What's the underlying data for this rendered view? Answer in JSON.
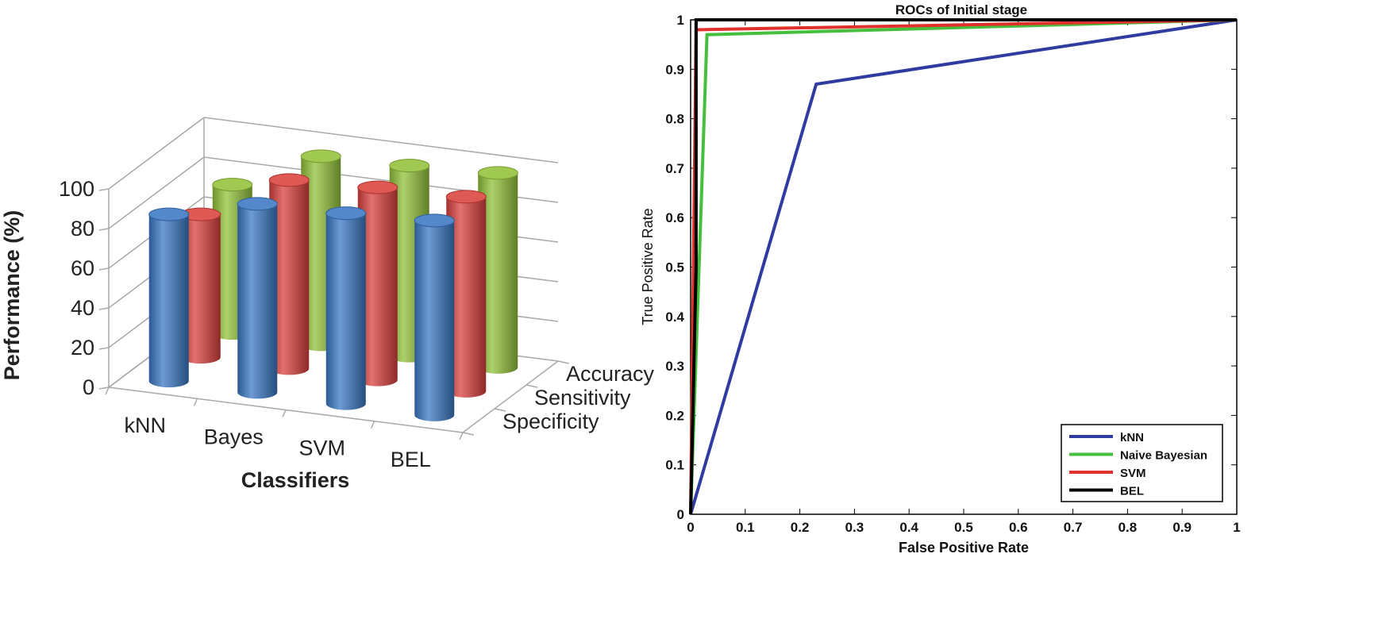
{
  "chart_data": [
    {
      "type": "bar",
      "subtype": "3d-cylinder",
      "title": "",
      "xlabel": "Classifiers",
      "ylabel": "Performance  (%)",
      "ylim": [
        0,
        100
      ],
      "yticks": [
        "0",
        "20",
        "40",
        "60",
        "80",
        "100"
      ],
      "categories": [
        "kNN",
        "Bayes",
        "SVM",
        "BEL"
      ],
      "series": [
        {
          "name": "Specificity",
          "color": "#3b78c4",
          "values": [
            84,
            95,
            96,
            98
          ]
        },
        {
          "name": "Sensitivity",
          "color": "#d9413d",
          "values": [
            72,
            95,
            97,
            98
          ]
        },
        {
          "name": "Accuracy",
          "color": "#93c23a",
          "values": [
            75,
            95,
            96,
            98
          ]
        }
      ],
      "depth_labels": [
        "Specificity",
        "Sensitivity",
        "Accuracy"
      ]
    },
    {
      "type": "line",
      "title": "ROCs of Initial stage",
      "xlabel": "False Positive Rate",
      "ylabel": "True Positive Rate",
      "xlim": [
        0,
        1
      ],
      "ylim": [
        0,
        1
      ],
      "xticks": [
        "0",
        "0.1",
        "0.2",
        "0.3",
        "0.4",
        "0.5",
        "0.6",
        "0.7",
        "0.8",
        "0.9",
        "1"
      ],
      "yticks": [
        "0",
        "0.1",
        "0.2",
        "0.3",
        "0.4",
        "0.5",
        "0.6",
        "0.7",
        "0.8",
        "0.9",
        "1"
      ],
      "legend_position": "bottom-right",
      "series": [
        {
          "name": "kNN",
          "color": "#2f3ba0",
          "x": [
            0,
            0.23,
            1
          ],
          "y": [
            0,
            0.87,
            1
          ]
        },
        {
          "name": "Naive Bayesian",
          "color": "#46c03c",
          "x": [
            0,
            0.03,
            1
          ],
          "y": [
            0,
            0.97,
            1
          ]
        },
        {
          "name": "SVM",
          "color": "#e0312c",
          "x": [
            0,
            0.01,
            1
          ],
          "y": [
            0,
            0.98,
            1
          ]
        },
        {
          "name": "BEL",
          "color": "#000000",
          "x": [
            0,
            0.01,
            0.01,
            1
          ],
          "y": [
            0,
            0.5,
            1,
            1
          ]
        }
      ]
    }
  ]
}
